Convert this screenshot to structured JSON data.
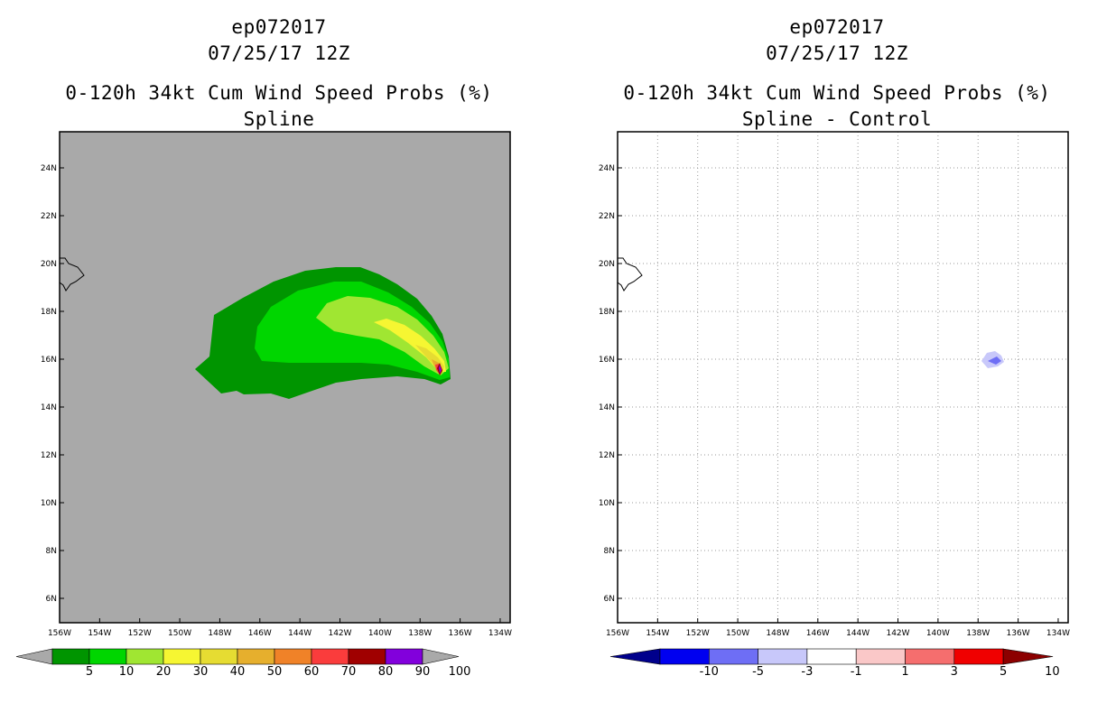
{
  "left_panel": {
    "storm_id": "ep072017",
    "datetime": "07/25/17 12Z",
    "title": "0-120h 34kt Cum Wind Speed Probs (%)",
    "subtitle": "Spline",
    "lat_labels": [
      "24N",
      "22N",
      "20N",
      "18N",
      "16N",
      "14N",
      "12N",
      "10N",
      "8N",
      "6N"
    ],
    "lon_labels": [
      "156W",
      "154W",
      "152W",
      "150W",
      "148W",
      "146W",
      "144W",
      "142W",
      "140W",
      "138W",
      "136W",
      "134W"
    ],
    "colorbar": {
      "labels": [
        "5",
        "10",
        "20",
        "30",
        "40",
        "50",
        "60",
        "70",
        "80",
        "90",
        "100"
      ],
      "colors": [
        "#a9a9a9",
        "#009500",
        "#00d600",
        "#a0e632",
        "#f6f632",
        "#e6dc32",
        "#e6af2d",
        "#f08228",
        "#fa3c3c",
        "#a00000",
        "#8200dc",
        "#a9a9a9"
      ]
    },
    "background_color": "#a9a9a9"
  },
  "right_panel": {
    "storm_id": "ep072017",
    "datetime": "07/25/17 12Z",
    "title": "0-120h 34kt Cum Wind Speed Probs (%)",
    "subtitle": "Spline - Control",
    "lat_labels": [
      "24N",
      "22N",
      "20N",
      "18N",
      "16N",
      "14N",
      "12N",
      "10N",
      "8N",
      "6N"
    ],
    "lon_labels": [
      "156W",
      "154W",
      "152W",
      "150W",
      "148W",
      "146W",
      "144W",
      "142W",
      "140W",
      "138W",
      "136W",
      "134W"
    ],
    "colorbar": {
      "labels": [
        "-10",
        "-5",
        "-3",
        "-1",
        "1",
        "3",
        "5",
        "10"
      ],
      "colors": [
        "#00008c",
        "#0000f0",
        "#6e6ef5",
        "#c8c8fa",
        "#ffffff",
        "#fac8c8",
        "#f56e6e",
        "#f00000",
        "#8c0000"
      ]
    }
  }
}
